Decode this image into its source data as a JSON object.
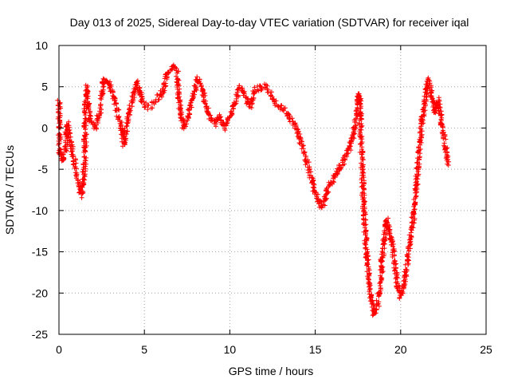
{
  "chart_data": {
    "type": "scatter",
    "title": "Day 013 of 2025, Sidereal Day-to-day VTEC variation (SDTVAR) for receiver iqal",
    "xlabel": "GPS time / hours",
    "ylabel": "SDTVAR / TECUs",
    "xlim": [
      0,
      25
    ],
    "ylim": [
      -25,
      10
    ],
    "xticks": [
      0,
      5,
      10,
      15,
      20,
      25
    ],
    "yticks": [
      -25,
      -20,
      -15,
      -10,
      -5,
      0,
      5,
      10
    ],
    "xtick_labels": [
      "0",
      "5",
      "10",
      "15",
      "20",
      "25"
    ],
    "ytick_labels": [
      "-25",
      "-20",
      "-15",
      "-10",
      "-5",
      "0",
      "5",
      "10"
    ],
    "grid": true,
    "marker": "+",
    "color": "#ff0000",
    "series": [
      {
        "name": "SDTVAR",
        "trace_nodes": [
          [
            0.0,
            3.5
          ],
          [
            0.05,
            -3.0
          ],
          [
            0.2,
            -3.8
          ],
          [
            0.4,
            -2.5
          ],
          [
            0.5,
            0.5
          ],
          [
            0.7,
            -1.5
          ],
          [
            0.9,
            -4.0
          ],
          [
            1.1,
            -6.5
          ],
          [
            1.3,
            -8.0
          ],
          [
            1.4,
            -6.5
          ],
          [
            1.5,
            -5.0
          ],
          [
            1.55,
            3.0
          ],
          [
            1.65,
            5.0
          ],
          [
            1.8,
            1.0
          ],
          [
            2.1,
            0.0
          ],
          [
            2.4,
            2.0
          ],
          [
            2.6,
            6.0
          ],
          [
            2.9,
            5.5
          ],
          [
            3.2,
            4.0
          ],
          [
            3.4,
            2.0
          ],
          [
            3.6,
            0.5
          ],
          [
            3.8,
            -2.0
          ],
          [
            4.0,
            1.0
          ],
          [
            4.3,
            3.5
          ],
          [
            4.6,
            5.5
          ],
          [
            4.9,
            3.0
          ],
          [
            5.2,
            2.5
          ],
          [
            5.6,
            3.0
          ],
          [
            5.9,
            4.0
          ],
          [
            6.1,
            4.5
          ],
          [
            6.3,
            6.5
          ],
          [
            6.6,
            7.5
          ],
          [
            6.9,
            7.0
          ],
          [
            7.1,
            2.0
          ],
          [
            7.3,
            0.0
          ],
          [
            7.5,
            1.0
          ],
          [
            7.8,
            3.5
          ],
          [
            8.1,
            6.0
          ],
          [
            8.3,
            5.5
          ],
          [
            8.5,
            3.5
          ],
          [
            8.8,
            1.5
          ],
          [
            9.1,
            0.5
          ],
          [
            9.4,
            1.5
          ],
          [
            9.7,
            0.0
          ],
          [
            10.0,
            1.5
          ],
          [
            10.3,
            3.0
          ],
          [
            10.6,
            5.0
          ],
          [
            10.9,
            4.0
          ],
          [
            11.2,
            2.5
          ],
          [
            11.5,
            4.5
          ],
          [
            11.8,
            5.0
          ],
          [
            12.1,
            5.0
          ],
          [
            12.4,
            4.0
          ],
          [
            12.7,
            3.0
          ],
          [
            13.0,
            2.5
          ],
          [
            13.3,
            2.0
          ],
          [
            13.6,
            1.0
          ],
          [
            13.9,
            0.0
          ],
          [
            14.2,
            -2.0
          ],
          [
            14.5,
            -4.0
          ],
          [
            14.8,
            -6.5
          ],
          [
            15.1,
            -8.5
          ],
          [
            15.3,
            -9.5
          ],
          [
            15.5,
            -9.0
          ],
          [
            15.8,
            -7.0
          ],
          [
            16.1,
            -6.0
          ],
          [
            16.4,
            -5.0
          ],
          [
            16.7,
            -4.0
          ],
          [
            17.0,
            -2.5
          ],
          [
            17.2,
            -1.0
          ],
          [
            17.4,
            1.0
          ],
          [
            17.5,
            3.5
          ],
          [
            17.6,
            4.0
          ],
          [
            17.8,
            -8.0
          ],
          [
            18.0,
            -15.0
          ],
          [
            18.2,
            -19.5
          ],
          [
            18.4,
            -22.5
          ],
          [
            18.6,
            -22.0
          ],
          [
            18.8,
            -19.0
          ],
          [
            19.0,
            -14.0
          ],
          [
            19.2,
            -11.0
          ],
          [
            19.5,
            -14.0
          ],
          [
            19.8,
            -19.0
          ],
          [
            20.0,
            -20.5
          ],
          [
            20.2,
            -19.0
          ],
          [
            20.4,
            -16.0
          ],
          [
            20.6,
            -13.0
          ],
          [
            20.8,
            -10.0
          ],
          [
            21.0,
            -5.0
          ],
          [
            21.2,
            0.0
          ],
          [
            21.4,
            3.0
          ],
          [
            21.6,
            6.0
          ],
          [
            21.8,
            4.5
          ],
          [
            22.0,
            2.0
          ],
          [
            22.2,
            3.5
          ],
          [
            22.4,
            0.5
          ],
          [
            22.6,
            -2.0
          ],
          [
            22.8,
            -4.5
          ]
        ]
      }
    ]
  }
}
